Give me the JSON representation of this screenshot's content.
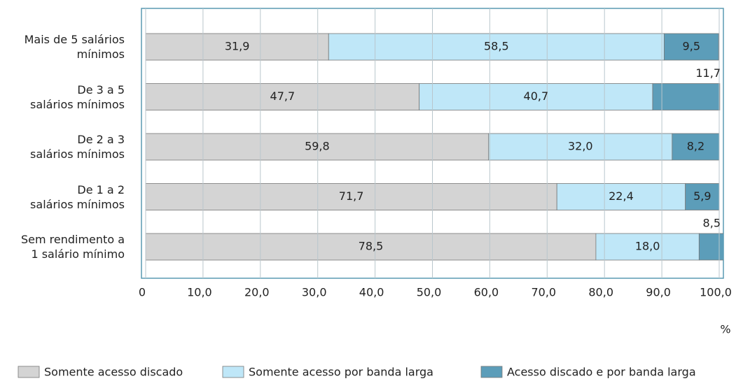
{
  "chart_data": {
    "type": "stacked-barh",
    "categories": [
      "Mais de 5 salários\nmínimos",
      "De 3 a 5\nsalários mínimos",
      "De 2 a 3\nsalários mínimos",
      "De 1 a 2\nsalários mínimos",
      "Sem rendimento a\n1 salário mínimo"
    ],
    "series": [
      {
        "name": "Somente acesso discado",
        "color": "#d4d4d4",
        "values": [
          31.9,
          47.7,
          59.8,
          71.7,
          78.5
        ],
        "value_labels": [
          "31,9",
          "47,7",
          "59,8",
          "71,7",
          "78,5"
        ]
      },
      {
        "name": "Somente acesso por banda larga",
        "color": "#bfe7f8",
        "values": [
          58.5,
          40.7,
          32.0,
          22.4,
          18.0
        ],
        "value_labels": [
          "58,5",
          "40,7",
          "32,0",
          "22,4",
          "18,0"
        ]
      },
      {
        "name": "Acesso discado e por banda larga",
        "color": "#5c9db9",
        "values": [
          9.5,
          11.7,
          8.2,
          5.9,
          8.5
        ],
        "value_labels": [
          "9,5",
          "11,7",
          "8,2",
          "5,9",
          "8,5"
        ]
      }
    ],
    "xlim": [
      0,
      100
    ],
    "xticks": [
      0,
      {
        "value": 10,
        "label": "10,0"
      },
      {
        "value": 20,
        "label": "20,0"
      },
      {
        "value": 30,
        "label": "30,0"
      },
      {
        "value": 40,
        "label": "40,0"
      },
      {
        "value": 50,
        "label": "50,0"
      },
      {
        "value": 60,
        "label": "60,0"
      },
      {
        "value": 70,
        "label": "70,0"
      },
      {
        "value": 80,
        "label": "80,0"
      },
      {
        "value": 90,
        "label": "90,0"
      },
      {
        "value": 100,
        "label": "100,0"
      }
    ],
    "x_unit": "%",
    "grid": true,
    "legend": "bottom"
  }
}
